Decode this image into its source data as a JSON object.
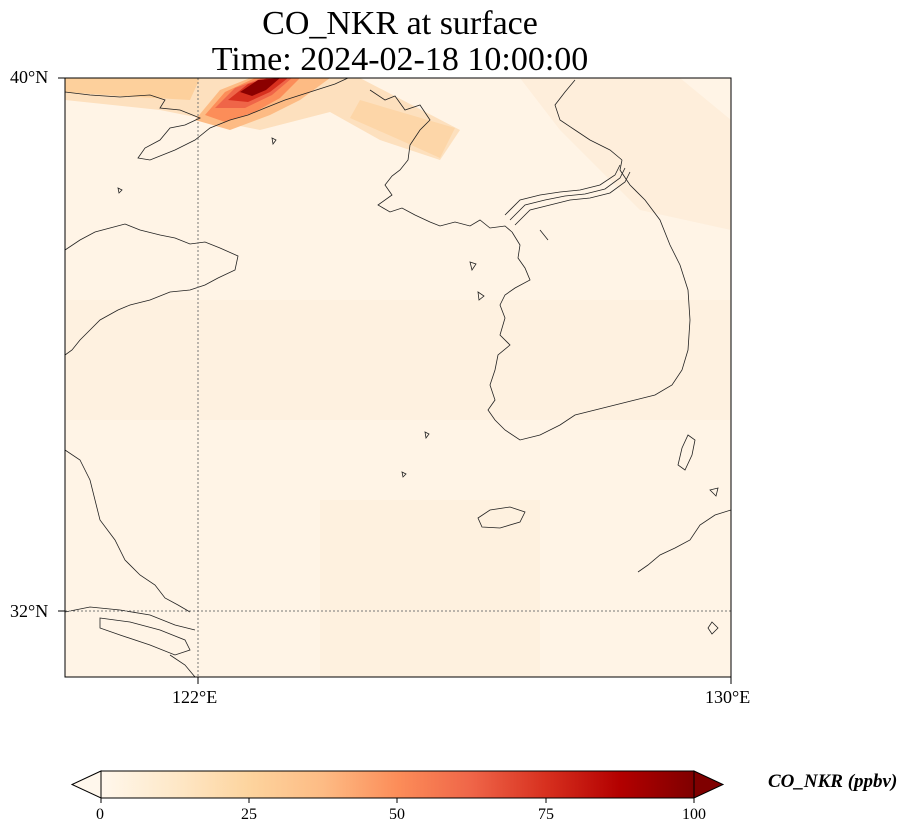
{
  "title_line1": "CO_NKR at surface",
  "title_line2": "Time: 2024-02-18 10:00:00",
  "axes": {
    "lon_ticks": [
      "122°E",
      "130°E"
    ],
    "lat_ticks": [
      "40°N",
      "32°N"
    ],
    "lon_range": [
      120,
      130
    ],
    "lat_range": [
      31,
      40
    ],
    "gridlines": "dotted"
  },
  "colorbar": {
    "label": "CO_NKR (ppbv)",
    "ticks": [
      "0",
      "25",
      "50",
      "75",
      "100"
    ],
    "range": [
      0,
      100
    ],
    "extend": "both",
    "colormap": [
      "#fff7ec",
      "#fee8c8",
      "#fdd49e",
      "#fdbb84",
      "#fc8d59",
      "#ef6548",
      "#d7301f",
      "#b30000",
      "#7f0000"
    ]
  },
  "field": {
    "background_color": "#fff3e4",
    "plume_color": "#8b0000",
    "plume_note_level_ppbv": 100
  }
}
